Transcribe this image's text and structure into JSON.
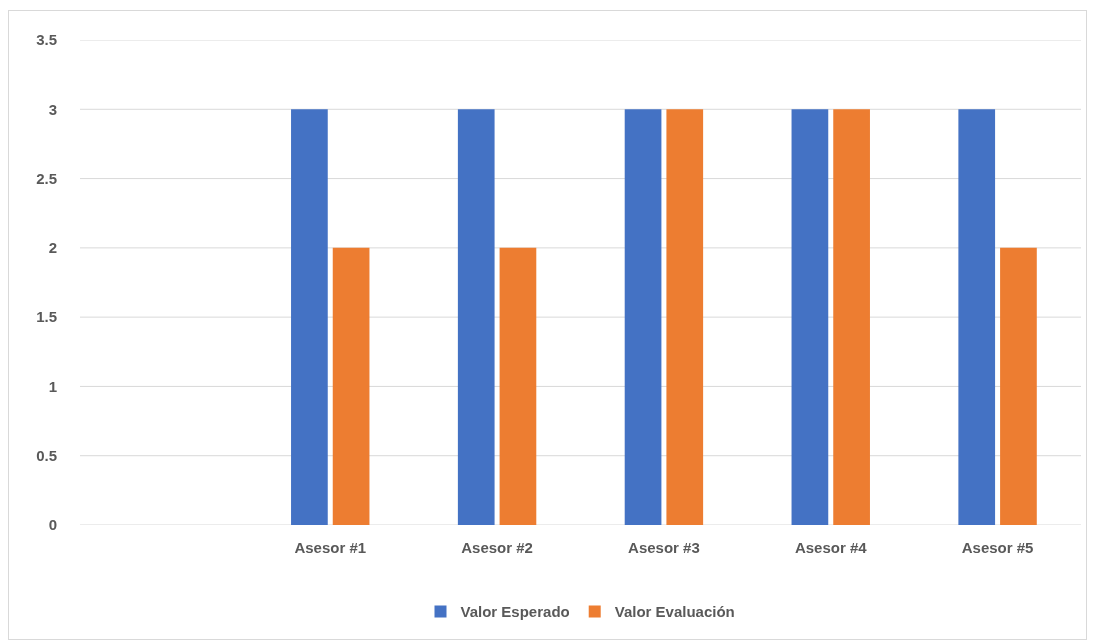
{
  "chart_data": {
    "type": "bar",
    "categories": [
      null,
      "Asesor #1",
      "Asesor #2",
      "Asesor #3",
      "Asesor #4",
      "Asesor #5"
    ],
    "series": [
      {
        "name": "Valor Esperado",
        "color": "#4472c4",
        "values": [
          null,
          3,
          3,
          3,
          3,
          3
        ]
      },
      {
        "name": "Valor Evaluación",
        "color": "#ed7d31",
        "values": [
          null,
          2,
          2,
          3,
          3,
          2
        ]
      }
    ],
    "ylim": [
      0,
      3.5
    ],
    "yticks": [
      0,
      0.5,
      1,
      1.5,
      2,
      2.5,
      3,
      3.5
    ],
    "grid": "y",
    "legend": "bottom"
  }
}
